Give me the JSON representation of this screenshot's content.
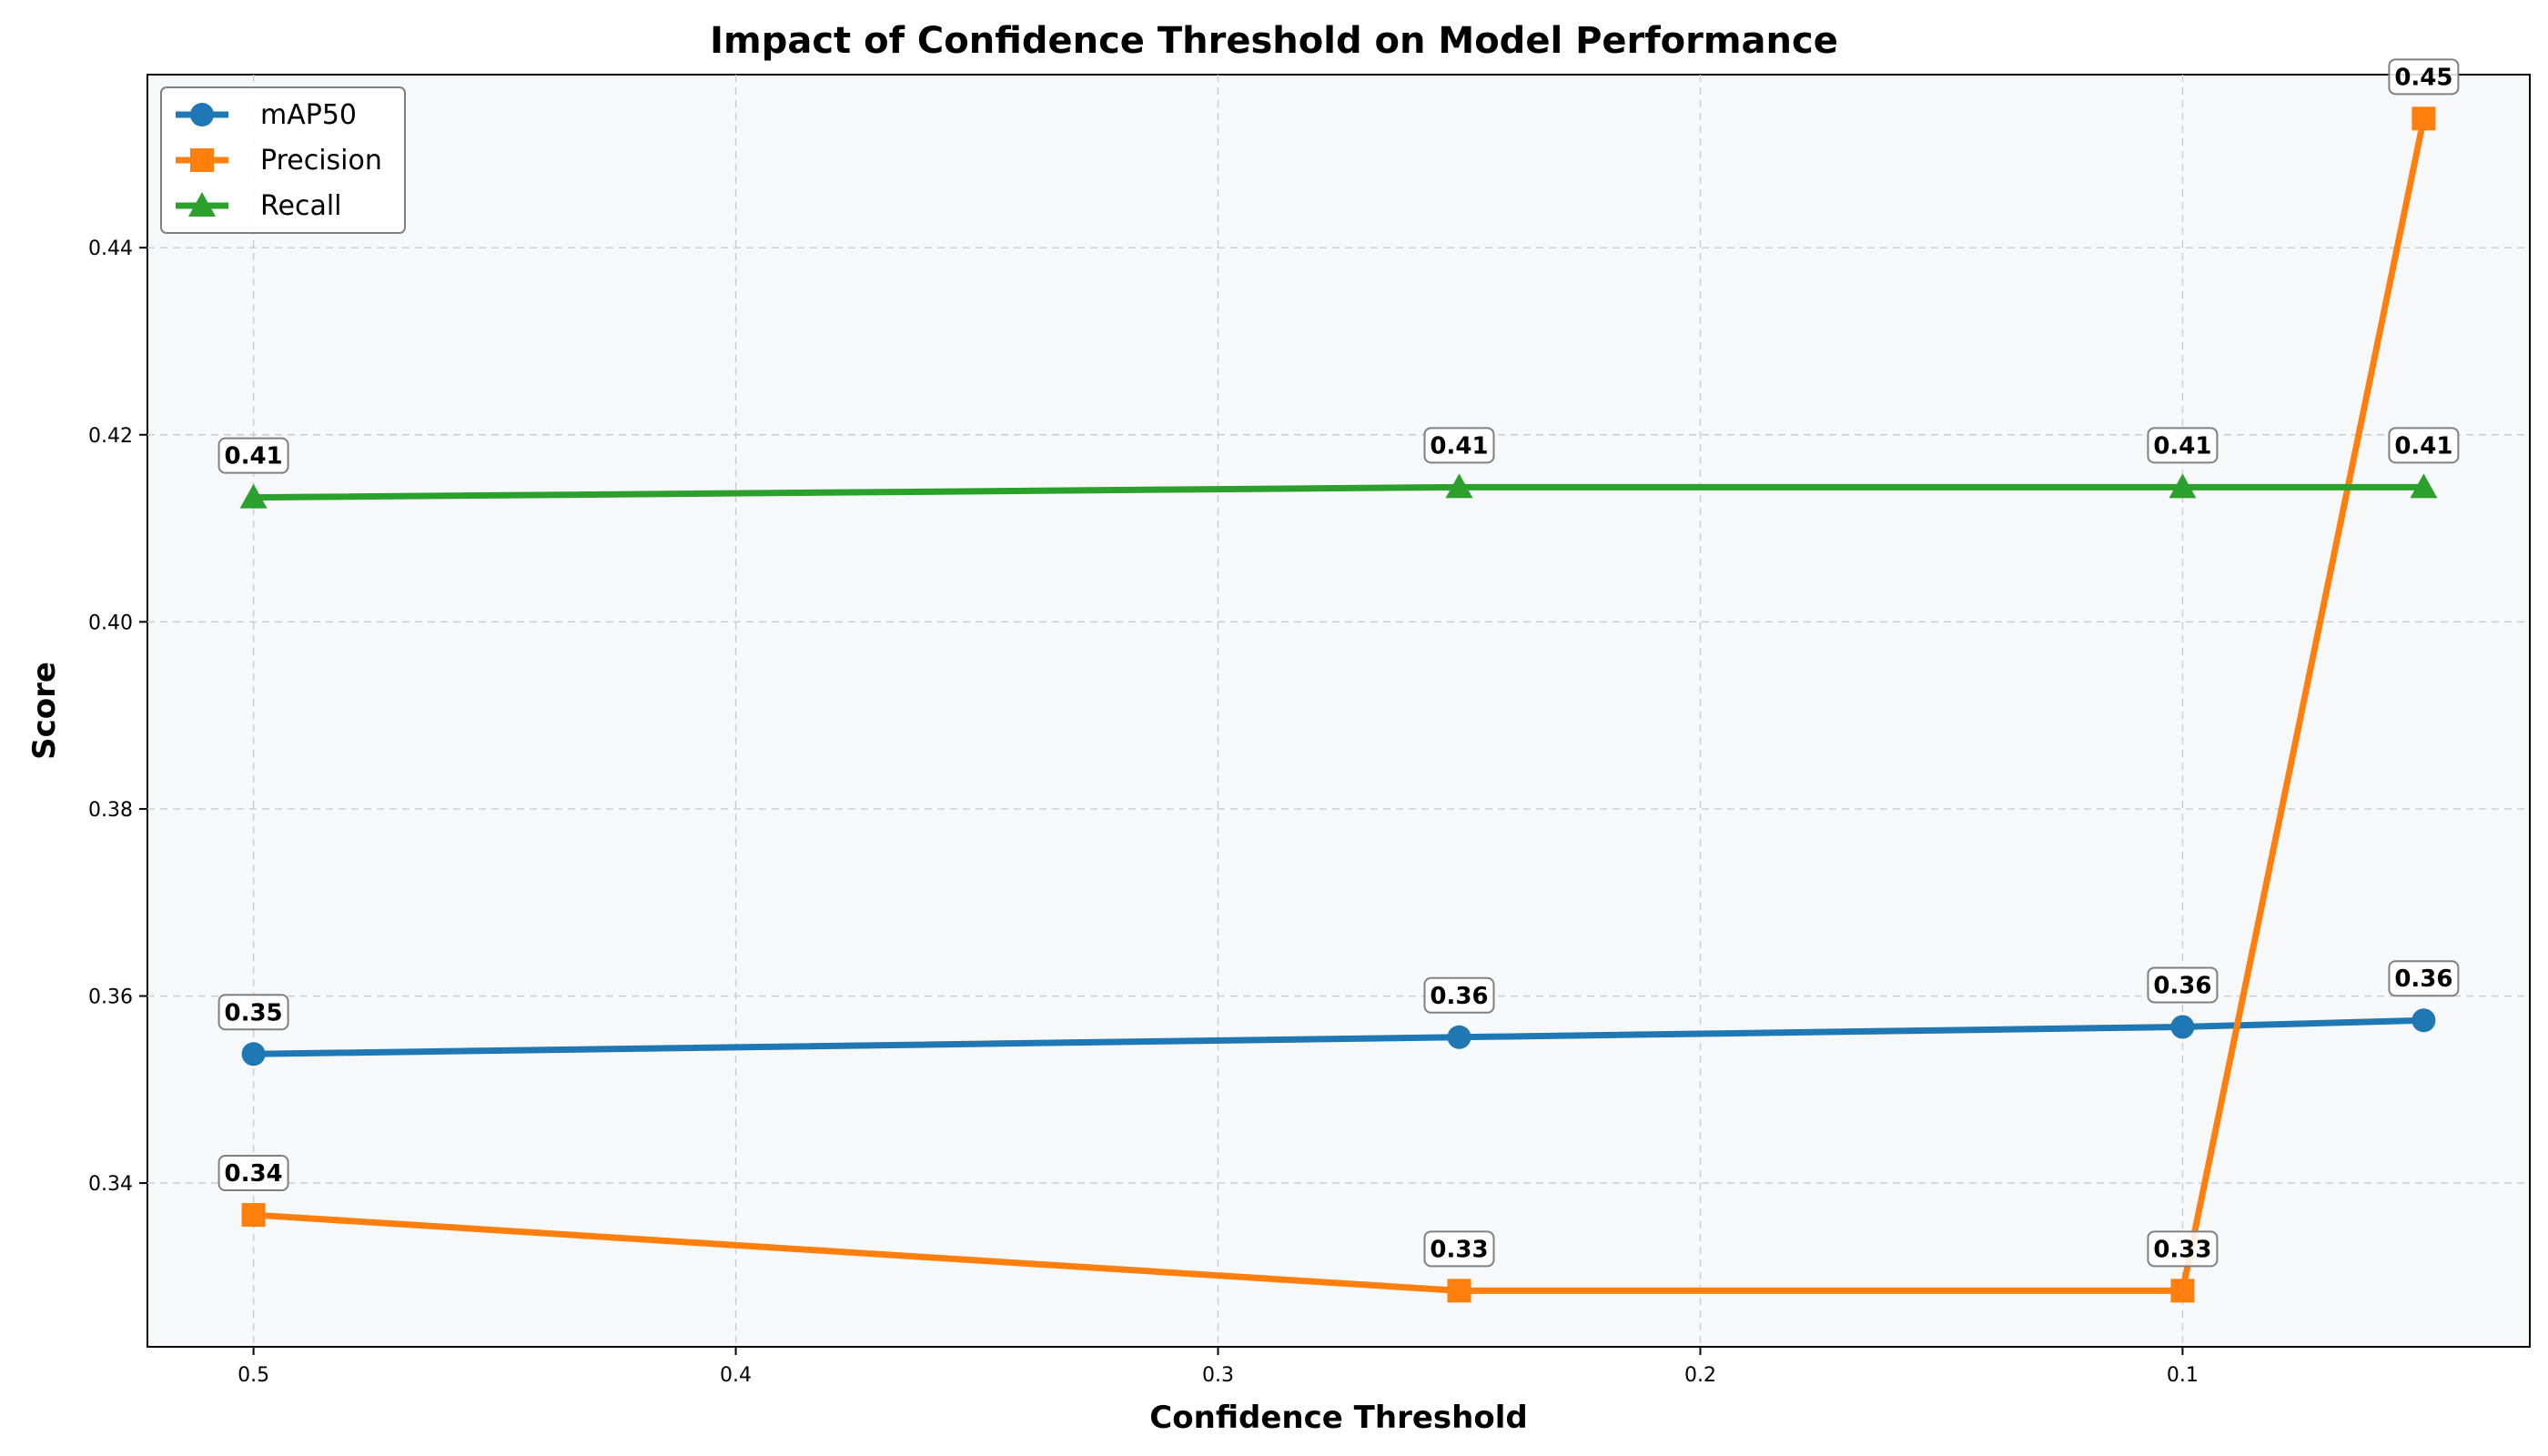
{
  "chart_data": {
    "type": "line",
    "title": "Impact of Confidence Threshold on Model Performance",
    "xlabel": "Confidence Threshold",
    "ylabel": "Score",
    "x": [
      0.5,
      0.25,
      0.1,
      0.05
    ],
    "x_axis_reversed": true,
    "xlim": [
      0.522,
      0.028
    ],
    "ylim": [
      0.3225,
      0.4585
    ],
    "xticks": [
      0.5,
      0.4,
      0.3,
      0.2,
      0.1
    ],
    "xtick_labels": [
      "0.5",
      "0.4",
      "0.3",
      "0.2",
      "0.1"
    ],
    "yticks": [
      0.34,
      0.36,
      0.38,
      0.4,
      0.42,
      0.44
    ],
    "ytick_labels": [
      "0.34",
      "0.36",
      "0.38",
      "0.40",
      "0.42",
      "0.44"
    ],
    "grid": true,
    "legend_position": "top-left",
    "series": [
      {
        "name": "mAP50",
        "color": "#1f77b4",
        "marker": "circle",
        "values": [
          0.3538,
          0.3556,
          0.3567,
          0.3574
        ],
        "labels": [
          "0.35",
          "0.36",
          "0.36",
          "0.36"
        ]
      },
      {
        "name": "Precision",
        "color": "#ff7f0e",
        "marker": "square",
        "values": [
          0.3366,
          0.3285,
          0.3285,
          0.4538
        ],
        "labels": [
          "0.34",
          "0.33",
          "0.33",
          "0.45"
        ]
      },
      {
        "name": "Recall",
        "color": "#2ca02c",
        "marker": "triangle",
        "values": [
          0.4133,
          0.4144,
          0.4144,
          0.4144
        ],
        "labels": [
          "0.41",
          "0.41",
          "0.41",
          "0.41"
        ]
      }
    ]
  }
}
